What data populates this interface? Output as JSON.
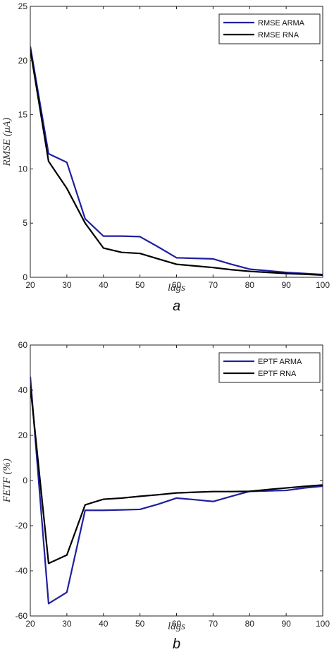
{
  "chart_data": [
    {
      "type": "line",
      "panel_label": "a",
      "xlabel": "lags",
      "ylabel": "RMSE (μA)",
      "xlim": [
        20,
        100
      ],
      "ylim": [
        0,
        25
      ],
      "xticks": [
        20,
        30,
        40,
        50,
        60,
        70,
        80,
        90,
        100
      ],
      "yticks": [
        0,
        5,
        10,
        15,
        20,
        25
      ],
      "grid": false,
      "legend_position": "top-right",
      "series": [
        {
          "name": "RMSE ARMA",
          "color": "#1f1fa0",
          "x": [
            20,
            25,
            30,
            35,
            40,
            45,
            50,
            55,
            60,
            65,
            70,
            75,
            80,
            85,
            90,
            95,
            100
          ],
          "y": [
            21.3,
            11.4,
            10.6,
            5.4,
            3.8,
            3.8,
            3.75,
            2.8,
            1.8,
            1.75,
            1.7,
            1.2,
            0.75,
            0.6,
            0.45,
            0.35,
            0.25
          ]
        },
        {
          "name": "RMSE RNA",
          "color": "#000000",
          "x": [
            20,
            25,
            30,
            35,
            40,
            45,
            50,
            55,
            60,
            65,
            70,
            75,
            80,
            85,
            90,
            95,
            100
          ],
          "y": [
            21.0,
            10.7,
            8.2,
            5.0,
            2.7,
            2.3,
            2.2,
            1.7,
            1.2,
            1.05,
            0.9,
            0.7,
            0.55,
            0.45,
            0.35,
            0.28,
            0.2
          ]
        }
      ]
    },
    {
      "type": "line",
      "panel_label": "b",
      "xlabel": "lags",
      "ylabel": "FETF (%)",
      "xlim": [
        20,
        100
      ],
      "ylim": [
        -60,
        60
      ],
      "xticks": [
        20,
        30,
        40,
        50,
        60,
        70,
        80,
        90,
        100
      ],
      "yticks": [
        -60,
        -40,
        -20,
        0,
        20,
        40,
        60
      ],
      "grid": false,
      "legend_position": "top-right",
      "series": [
        {
          "name": "EPTF ARMA",
          "color": "#1f1fa0",
          "x": [
            20,
            25,
            30,
            35,
            40,
            45,
            50,
            55,
            60,
            65,
            70,
            75,
            80,
            85,
            90,
            95,
            100
          ],
          "y": [
            46,
            -54.5,
            -49.5,
            -13.2,
            -13.2,
            -13.0,
            -12.8,
            -10.5,
            -7.8,
            -8.5,
            -9.3,
            -7.0,
            -4.8,
            -4.6,
            -4.4,
            -3.3,
            -2.5
          ]
        },
        {
          "name": "EPTF RNA",
          "color": "#000000",
          "x": [
            20,
            25,
            30,
            35,
            40,
            45,
            50,
            55,
            60,
            65,
            70,
            75,
            80,
            85,
            90,
            95,
            100
          ],
          "y": [
            42,
            -36.7,
            -33.0,
            -10.8,
            -8.3,
            -7.8,
            -7.0,
            -6.3,
            -5.5,
            -5.2,
            -4.9,
            -4.9,
            -4.8,
            -4.0,
            -3.3,
            -2.6,
            -2.0
          ]
        }
      ]
    }
  ]
}
